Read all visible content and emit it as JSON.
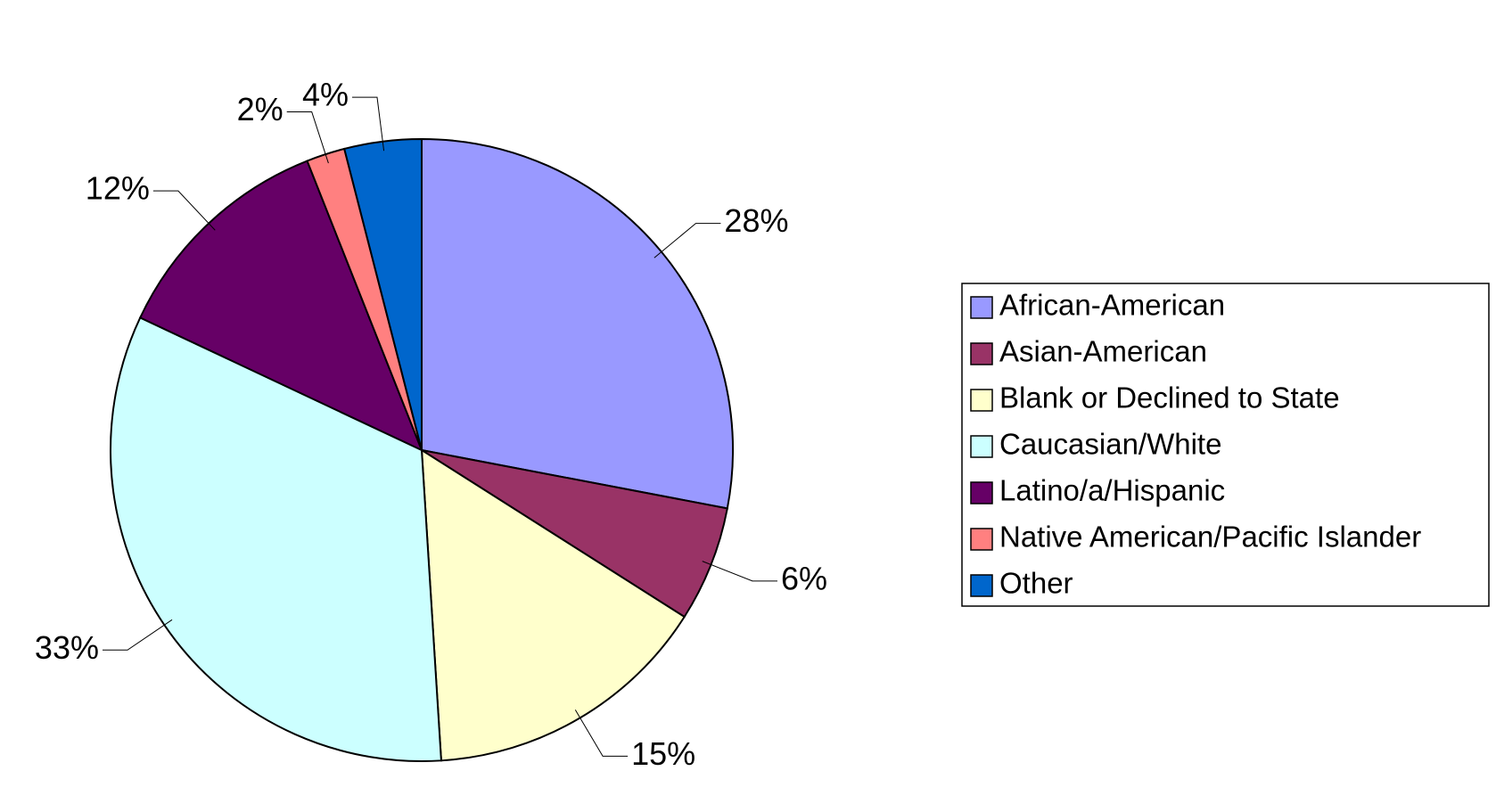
{
  "chart_data": {
    "type": "pie",
    "categories": [
      "African-American",
      "Asian-American",
      "Blank or Declined to State",
      "Caucasian/White",
      "Latino/a/Hispanic",
      "Native American/Pacific Islander",
      "Other"
    ],
    "values": [
      28,
      6,
      15,
      33,
      12,
      2,
      4
    ],
    "value_labels": [
      "28%",
      "6%",
      "15%",
      "33%",
      "12%",
      "2%",
      "4%"
    ],
    "colors": [
      "#9999ff",
      "#993366",
      "#ffffcc",
      "#ccffff",
      "#660066",
      "#ff8080",
      "#0066cc"
    ],
    "legend": "right"
  }
}
